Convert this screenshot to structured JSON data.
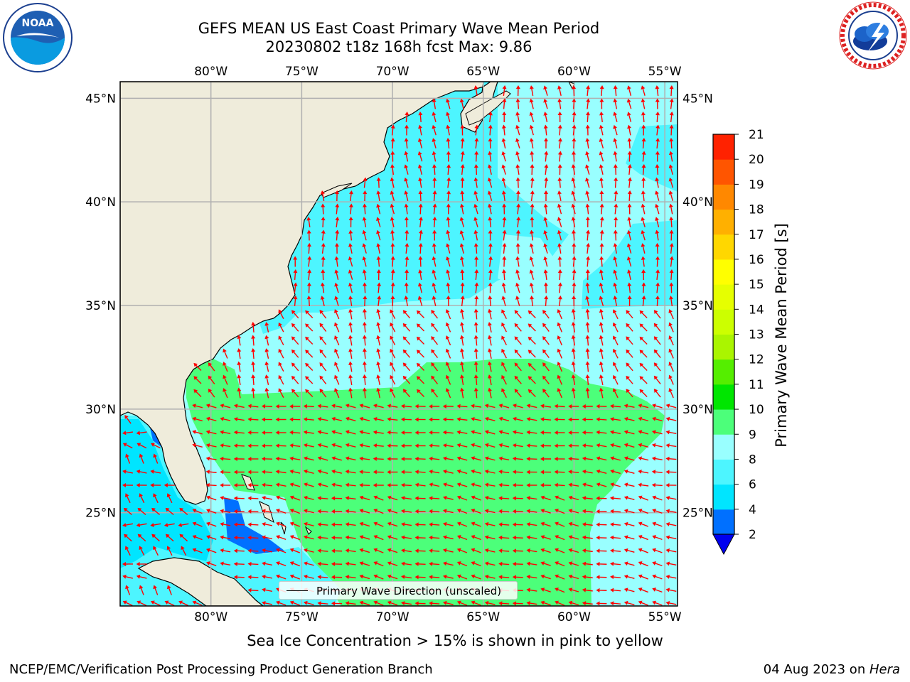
{
  "title": {
    "line1": "GEFS MEAN US East Coast Primary Wave Mean Period",
    "line2": "20230802 t18z 168h fcst   Max: 9.86"
  },
  "logos": {
    "left": "NOAA",
    "right": "NATIONAL WEATHER SERVICE"
  },
  "map": {
    "lon_labels": [
      "80°W",
      "75°W",
      "70°W",
      "65°W",
      "60°W",
      "55°W"
    ],
    "lat_labels": [
      "45°N",
      "40°N",
      "35°N",
      "30°N",
      "25°N"
    ],
    "lon_values": [
      -80,
      -75,
      -70,
      -65,
      -60,
      -55
    ],
    "lat_values": [
      45,
      40,
      35,
      30,
      25
    ],
    "extent": {
      "lon_min": -85,
      "lon_max": -54.3,
      "lat_min": 20.5,
      "lat_max": 45.8
    },
    "colors": {
      "land": "#efecdb",
      "grid": "#b0b0b0",
      "arrow": "#ff0000",
      "coast": "#000000"
    }
  },
  "legend": {
    "label": "Primary Wave Direction (unscaled)"
  },
  "colorbar": {
    "title": "Primary Wave Mean Period [s]",
    "ticks": [
      "2",
      "4",
      "6",
      "8",
      "9",
      "10",
      "11",
      "12",
      "13",
      "14",
      "15",
      "16",
      "17",
      "18",
      "19",
      "20",
      "21"
    ],
    "colors": [
      "#0070ff",
      "#00e5ff",
      "#4df5ff",
      "#99ffff",
      "#4cff7a",
      "#00e600",
      "#55ee00",
      "#aaf500",
      "#ccff00",
      "#e6ff00",
      "#ffff00",
      "#ffd700",
      "#ffb000",
      "#ff8800",
      "#ff5500",
      "#ff2200"
    ],
    "extend_color": "#0000ee"
  },
  "subtitle": "Sea Ice Concentration > 15% is shown in pink to yellow",
  "footer": {
    "left": "NCEP/EMC/Verification Post Processing Product Generation Branch",
    "right_date": "04 Aug 2023 on ",
    "right_machine": "Hera"
  }
}
